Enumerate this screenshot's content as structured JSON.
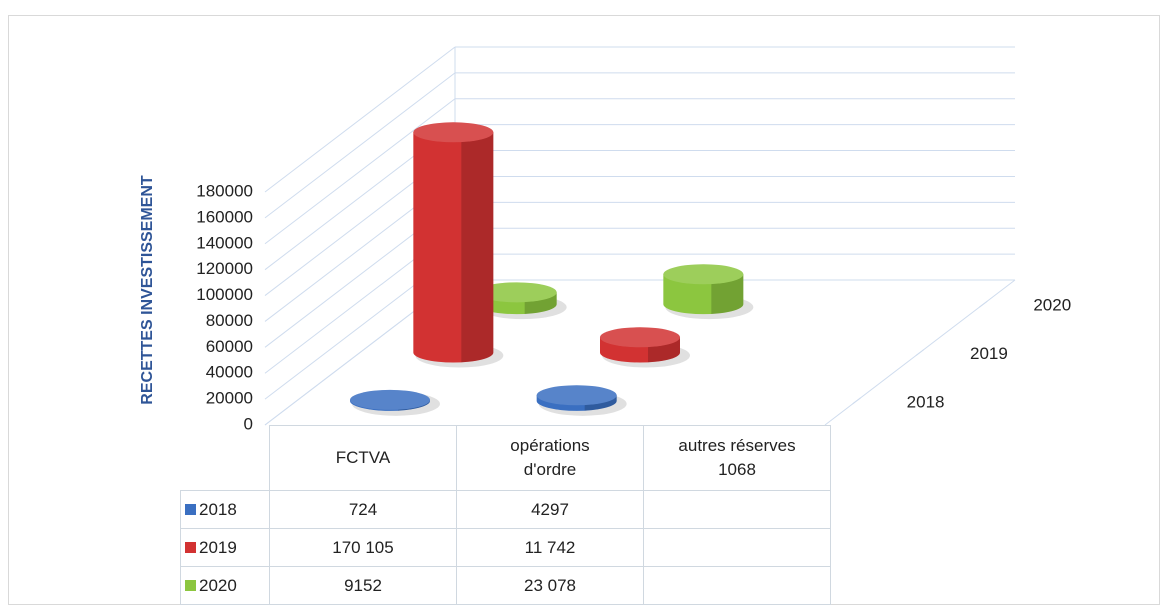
{
  "chart_data": {
    "type": "bar3d_cylinder",
    "y_axis_label": "RECETTES INVESTISSEMENT",
    "categories": [
      "FCTVA",
      "opérations d'ordre",
      "autres réserves 1068"
    ],
    "series": [
      {
        "name": "2018",
        "color": "#3a6fc1",
        "values": [
          724,
          4297,
          null
        ],
        "value_labels": [
          "724",
          "4297",
          null
        ]
      },
      {
        "name": "2019",
        "color": "#d23232",
        "values": [
          170105,
          11742,
          null
        ],
        "value_labels": [
          "170 105",
          "11 742",
          null
        ]
      },
      {
        "name": "2020",
        "color": "#8cc63f",
        "values": [
          9152,
          23078,
          null
        ],
        "value_labels": [
          "9152",
          "23 078",
          null
        ]
      }
    ],
    "ylim": [
      0,
      180000
    ],
    "yticks": [
      0,
      20000,
      40000,
      60000,
      80000,
      100000,
      120000,
      140000,
      160000,
      180000
    ],
    "grid": true
  }
}
